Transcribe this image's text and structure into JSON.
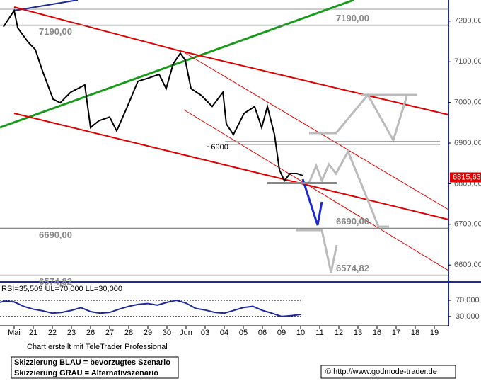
{
  "chart_data": [
    {
      "type": "line",
      "color": "#000000",
      "x": [
        -0.56,
        0,
        0.19,
        0.74,
        1.11,
        1.48,
        2.04,
        2.41,
        2.96,
        3.7,
        4,
        4.44,
        5,
        5.37,
        5.93,
        6.48,
        7.04,
        7.59,
        7.96,
        8.33,
        8.7,
        8.96,
        9.26,
        9.81,
        10.37,
        10.93,
        11.11,
        11.48,
        12.04,
        12.59,
        12.96,
        13.26,
        13.63,
        13.89,
        14.15,
        14.44,
        14.81,
        15.11
      ],
      "values": [
        7186,
        7226,
        7183,
        7148,
        7130,
        7078,
        7008,
        6999,
        7025,
        7043,
        6938,
        6955,
        6964,
        6930,
        6990,
        7052,
        7060,
        7069,
        7034,
        7095,
        7121,
        7104,
        7034,
        7017,
        6990,
        7025,
        6947,
        6921,
        6973,
        6990,
        6938,
        6990,
        6921,
        6834,
        6807,
        6825,
        6825,
        6820
      ],
      "categories": [
        "Mai",
        "21",
        "22",
        "23",
        "26",
        "27",
        "28",
        "29",
        "30",
        "Jun",
        "03",
        "04",
        "05",
        "06",
        "09",
        "10",
        "11",
        "12",
        "13",
        "16",
        "17",
        "18",
        "19"
      ],
      "xlim": [
        -0.74,
        22.74
      ],
      "ylim": [
        6562,
        7252
      ],
      "yticks": [
        {
          "value": 7200,
          "label": "7200,00"
        },
        {
          "value": 7100,
          "label": "7100,00"
        },
        {
          "value": 7000,
          "label": "7000,00"
        },
        {
          "value": 6900,
          "label": "6900,00"
        },
        {
          "value": 6800,
          "label": "6800,00"
        },
        {
          "value": 6700,
          "label": "6700,00"
        },
        {
          "value": 6600,
          "label": "6600,00"
        }
      ],
      "levels": [
        {
          "value": 7190,
          "label": "7190,00"
        },
        {
          "value": 6690,
          "label": "6690,00"
        },
        {
          "value": 6574.82,
          "label": "6574,82"
        }
      ],
      "annotation": {
        "value": 6900,
        "label": "~6900"
      },
      "last_price": {
        "value": 6815.63,
        "label": "6815,63"
      }
    },
    {
      "type": "line",
      "color": "#1c2a9c",
      "title": "RSI=35,509 UL=70,000 LL=30,000",
      "x": [
        -0.74,
        -0.5,
        0,
        0.5,
        1,
        1.5,
        2,
        2.5,
        3,
        3.5,
        4,
        4.5,
        5,
        5.5,
        6,
        6.5,
        7,
        7.5,
        8,
        8.5,
        9,
        9.5,
        10,
        10.5,
        11,
        11.5,
        12,
        12.5,
        13,
        13.5,
        14,
        14.5,
        15
      ],
      "values": [
        65,
        68,
        66,
        55,
        48,
        44,
        38,
        40,
        45,
        52,
        42,
        38,
        40,
        48,
        55,
        60,
        62,
        58,
        65,
        70,
        63,
        50,
        46,
        40,
        38,
        45,
        52,
        55,
        45,
        38,
        30,
        32,
        35
      ],
      "ylim": [
        7,
        112
      ],
      "yticks": [
        {
          "value": 70,
          "label": "70,000"
        },
        {
          "value": 30,
          "label": "30,000"
        }
      ],
      "bands": [
        70,
        30
      ]
    }
  ],
  "footer": {
    "credit": "Chart erstellt mit TeleTrader Professional",
    "legend_blue": "Skizzierung BLAU = bevorzugtes Szenario",
    "legend_gray": "Skizzierung GRAU = Alternativszenario",
    "source": "© http://www.godmode-trader.de"
  }
}
